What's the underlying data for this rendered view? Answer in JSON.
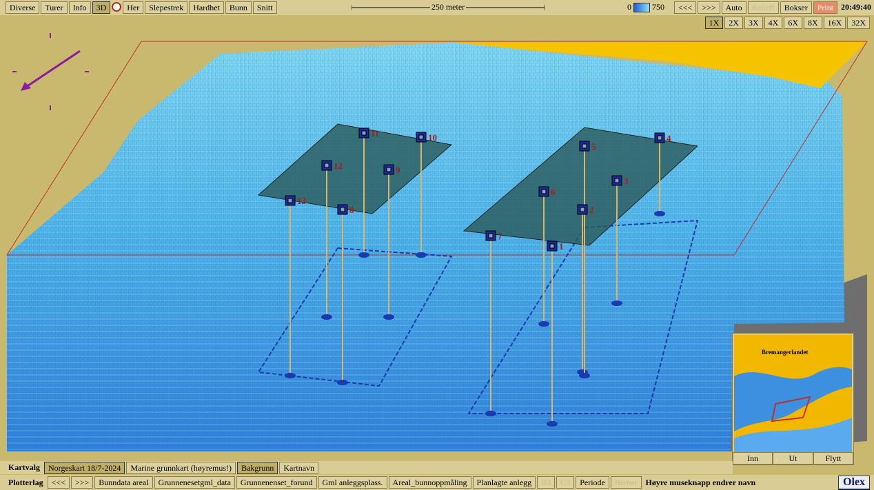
{
  "toolbar": {
    "left": [
      "Diverse",
      "Turer",
      "Info",
      "3D",
      "Her",
      "Slepestrek",
      "Hardhet",
      "Bunn",
      "Snitt"
    ],
    "scale": "250 meter",
    "depth_min": "0",
    "depth_max": "750",
    "right": [
      "<<<",
      ">>>",
      "Auto",
      "Relieff",
      "Bokser",
      "Print"
    ],
    "time": "20:49:40"
  },
  "zoom": [
    "1X",
    "2X",
    "3X",
    "4X",
    "6X",
    "8X",
    "16X",
    "32X"
  ],
  "markers": [
    "1",
    "2",
    "3",
    "4",
    "5",
    "6",
    "7",
    "8",
    "9",
    "10",
    "11",
    "12",
    "13"
  ],
  "map_bar": {
    "label": "Kartvalg",
    "items": [
      "Norgeskart 18/7-2024",
      "Marine grunnkart (høyremus!)",
      "Bakgrunn",
      "Kartnavn"
    ]
  },
  "plotter_bar": {
    "label": "Plotterlag",
    "items": [
      "<<<",
      ">>>",
      "Bunndata areal",
      "Grunnenesetgml_data",
      "Grunnenenset_forund",
      "Gml anleggsplass.",
      "Areal_bunnoppmåling",
      "Planlagte anlegg",
      "B3",
      "C3",
      "Periode",
      "Berner"
    ],
    "hint": "Høyre museknapp endrer navn"
  },
  "minimap": {
    "label": "Bremangerlandet",
    "buttons": [
      "Inn",
      "Ut",
      "Flytt"
    ]
  },
  "logo": "Olex"
}
